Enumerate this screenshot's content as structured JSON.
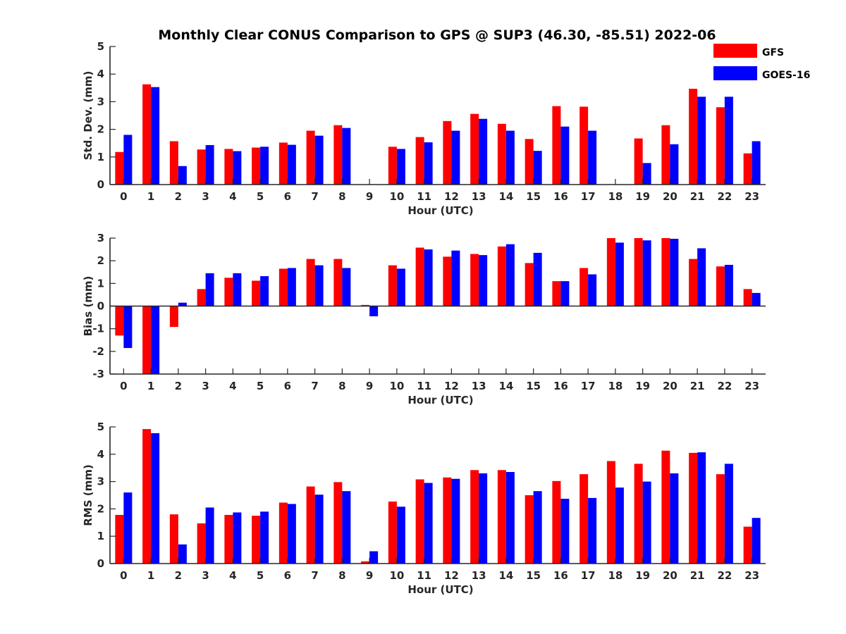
{
  "title": "Monthly Clear CONUS Comparison to GPS @ SUP3 (46.30, -85.51) 2022-06",
  "legend": {
    "position": "top-right",
    "entries": [
      {
        "label": "GFS",
        "color": "#ff0000"
      },
      {
        "label": "GOES-16",
        "color": "#0000ff"
      }
    ]
  },
  "chart_data": [
    {
      "type": "bar",
      "ylabel": "Std. Dev. (mm)",
      "xlabel": "Hour (UTC)",
      "ylim": [
        0,
        5
      ],
      "yticks": [
        0,
        1,
        2,
        3,
        4,
        5
      ],
      "categories": [
        "0",
        "1",
        "2",
        "3",
        "4",
        "5",
        "6",
        "7",
        "8",
        "9",
        "10",
        "11",
        "12",
        "13",
        "14",
        "15",
        "16",
        "17",
        "18",
        "19",
        "20",
        "21",
        "22",
        "23"
      ],
      "series": [
        {
          "name": "GFS",
          "color": "#ff0000",
          "values": [
            1.18,
            3.63,
            1.57,
            1.27,
            1.29,
            1.34,
            1.52,
            1.95,
            2.15,
            null,
            1.37,
            1.72,
            2.3,
            2.56,
            2.2,
            1.65,
            2.84,
            2.82,
            null,
            1.67,
            2.15,
            3.47,
            2.8,
            1.13
          ]
        },
        {
          "name": "GOES-16",
          "color": "#0000ff",
          "values": [
            1.8,
            3.53,
            0.67,
            1.43,
            1.21,
            1.37,
            1.44,
            1.77,
            2.05,
            null,
            1.29,
            1.53,
            1.95,
            2.38,
            1.95,
            1.22,
            2.1,
            1.95,
            null,
            0.78,
            1.46,
            3.18,
            3.18,
            1.57
          ]
        }
      ]
    },
    {
      "type": "bar",
      "ylabel": "Bias (mm)",
      "xlabel": "Hour (UTC)",
      "ylim": [
        -3,
        3
      ],
      "yticks": [
        -3,
        -2,
        -1,
        0,
        1,
        2,
        3
      ],
      "categories": [
        "0",
        "1",
        "2",
        "3",
        "4",
        "5",
        "6",
        "7",
        "8",
        "9",
        "10",
        "11",
        "12",
        "13",
        "14",
        "15",
        "16",
        "17",
        "18",
        "19",
        "20",
        "21",
        "22",
        "23"
      ],
      "series": [
        {
          "name": "GFS",
          "color": "#ff0000",
          "values": [
            -1.3,
            -3.0,
            -0.92,
            0.75,
            1.25,
            1.12,
            1.65,
            2.08,
            2.08,
            0.05,
            1.8,
            2.58,
            2.18,
            2.3,
            2.63,
            1.9,
            1.1,
            1.68,
            3.0,
            3.0,
            3.0,
            2.08,
            1.75,
            0.75
          ]
        },
        {
          "name": "GOES-16",
          "color": "#0000ff",
          "values": [
            -1.85,
            -3.0,
            0.15,
            1.45,
            1.45,
            1.32,
            1.68,
            1.8,
            1.68,
            -0.45,
            1.65,
            2.5,
            2.45,
            2.25,
            2.73,
            2.35,
            1.1,
            1.4,
            2.8,
            2.9,
            2.97,
            2.55,
            1.82,
            0.58
          ]
        }
      ]
    },
    {
      "type": "bar",
      "ylabel": "RMS (mm)",
      "xlabel": "Hour (UTC)",
      "ylim": [
        0,
        5
      ],
      "yticks": [
        0,
        1,
        2,
        3,
        4,
        5
      ],
      "categories": [
        "0",
        "1",
        "2",
        "3",
        "4",
        "5",
        "6",
        "7",
        "8",
        "9",
        "10",
        "11",
        "12",
        "13",
        "14",
        "15",
        "16",
        "17",
        "18",
        "19",
        "20",
        "21",
        "22",
        "23"
      ],
      "series": [
        {
          "name": "GFS",
          "color": "#ff0000",
          "values": [
            1.78,
            4.92,
            1.8,
            1.47,
            1.78,
            1.75,
            2.23,
            2.82,
            2.98,
            0.08,
            2.27,
            3.08,
            3.15,
            3.42,
            3.42,
            2.5,
            3.02,
            3.27,
            3.75,
            3.65,
            4.13,
            4.05,
            3.27,
            1.35
          ]
        },
        {
          "name": "GOES-16",
          "color": "#0000ff",
          "values": [
            2.6,
            4.77,
            0.7,
            2.05,
            1.87,
            1.9,
            2.18,
            2.52,
            2.65,
            0.45,
            2.08,
            2.95,
            3.1,
            3.3,
            3.35,
            2.65,
            2.37,
            2.4,
            2.78,
            3.0,
            3.3,
            4.07,
            3.65,
            1.67
          ]
        }
      ]
    }
  ]
}
